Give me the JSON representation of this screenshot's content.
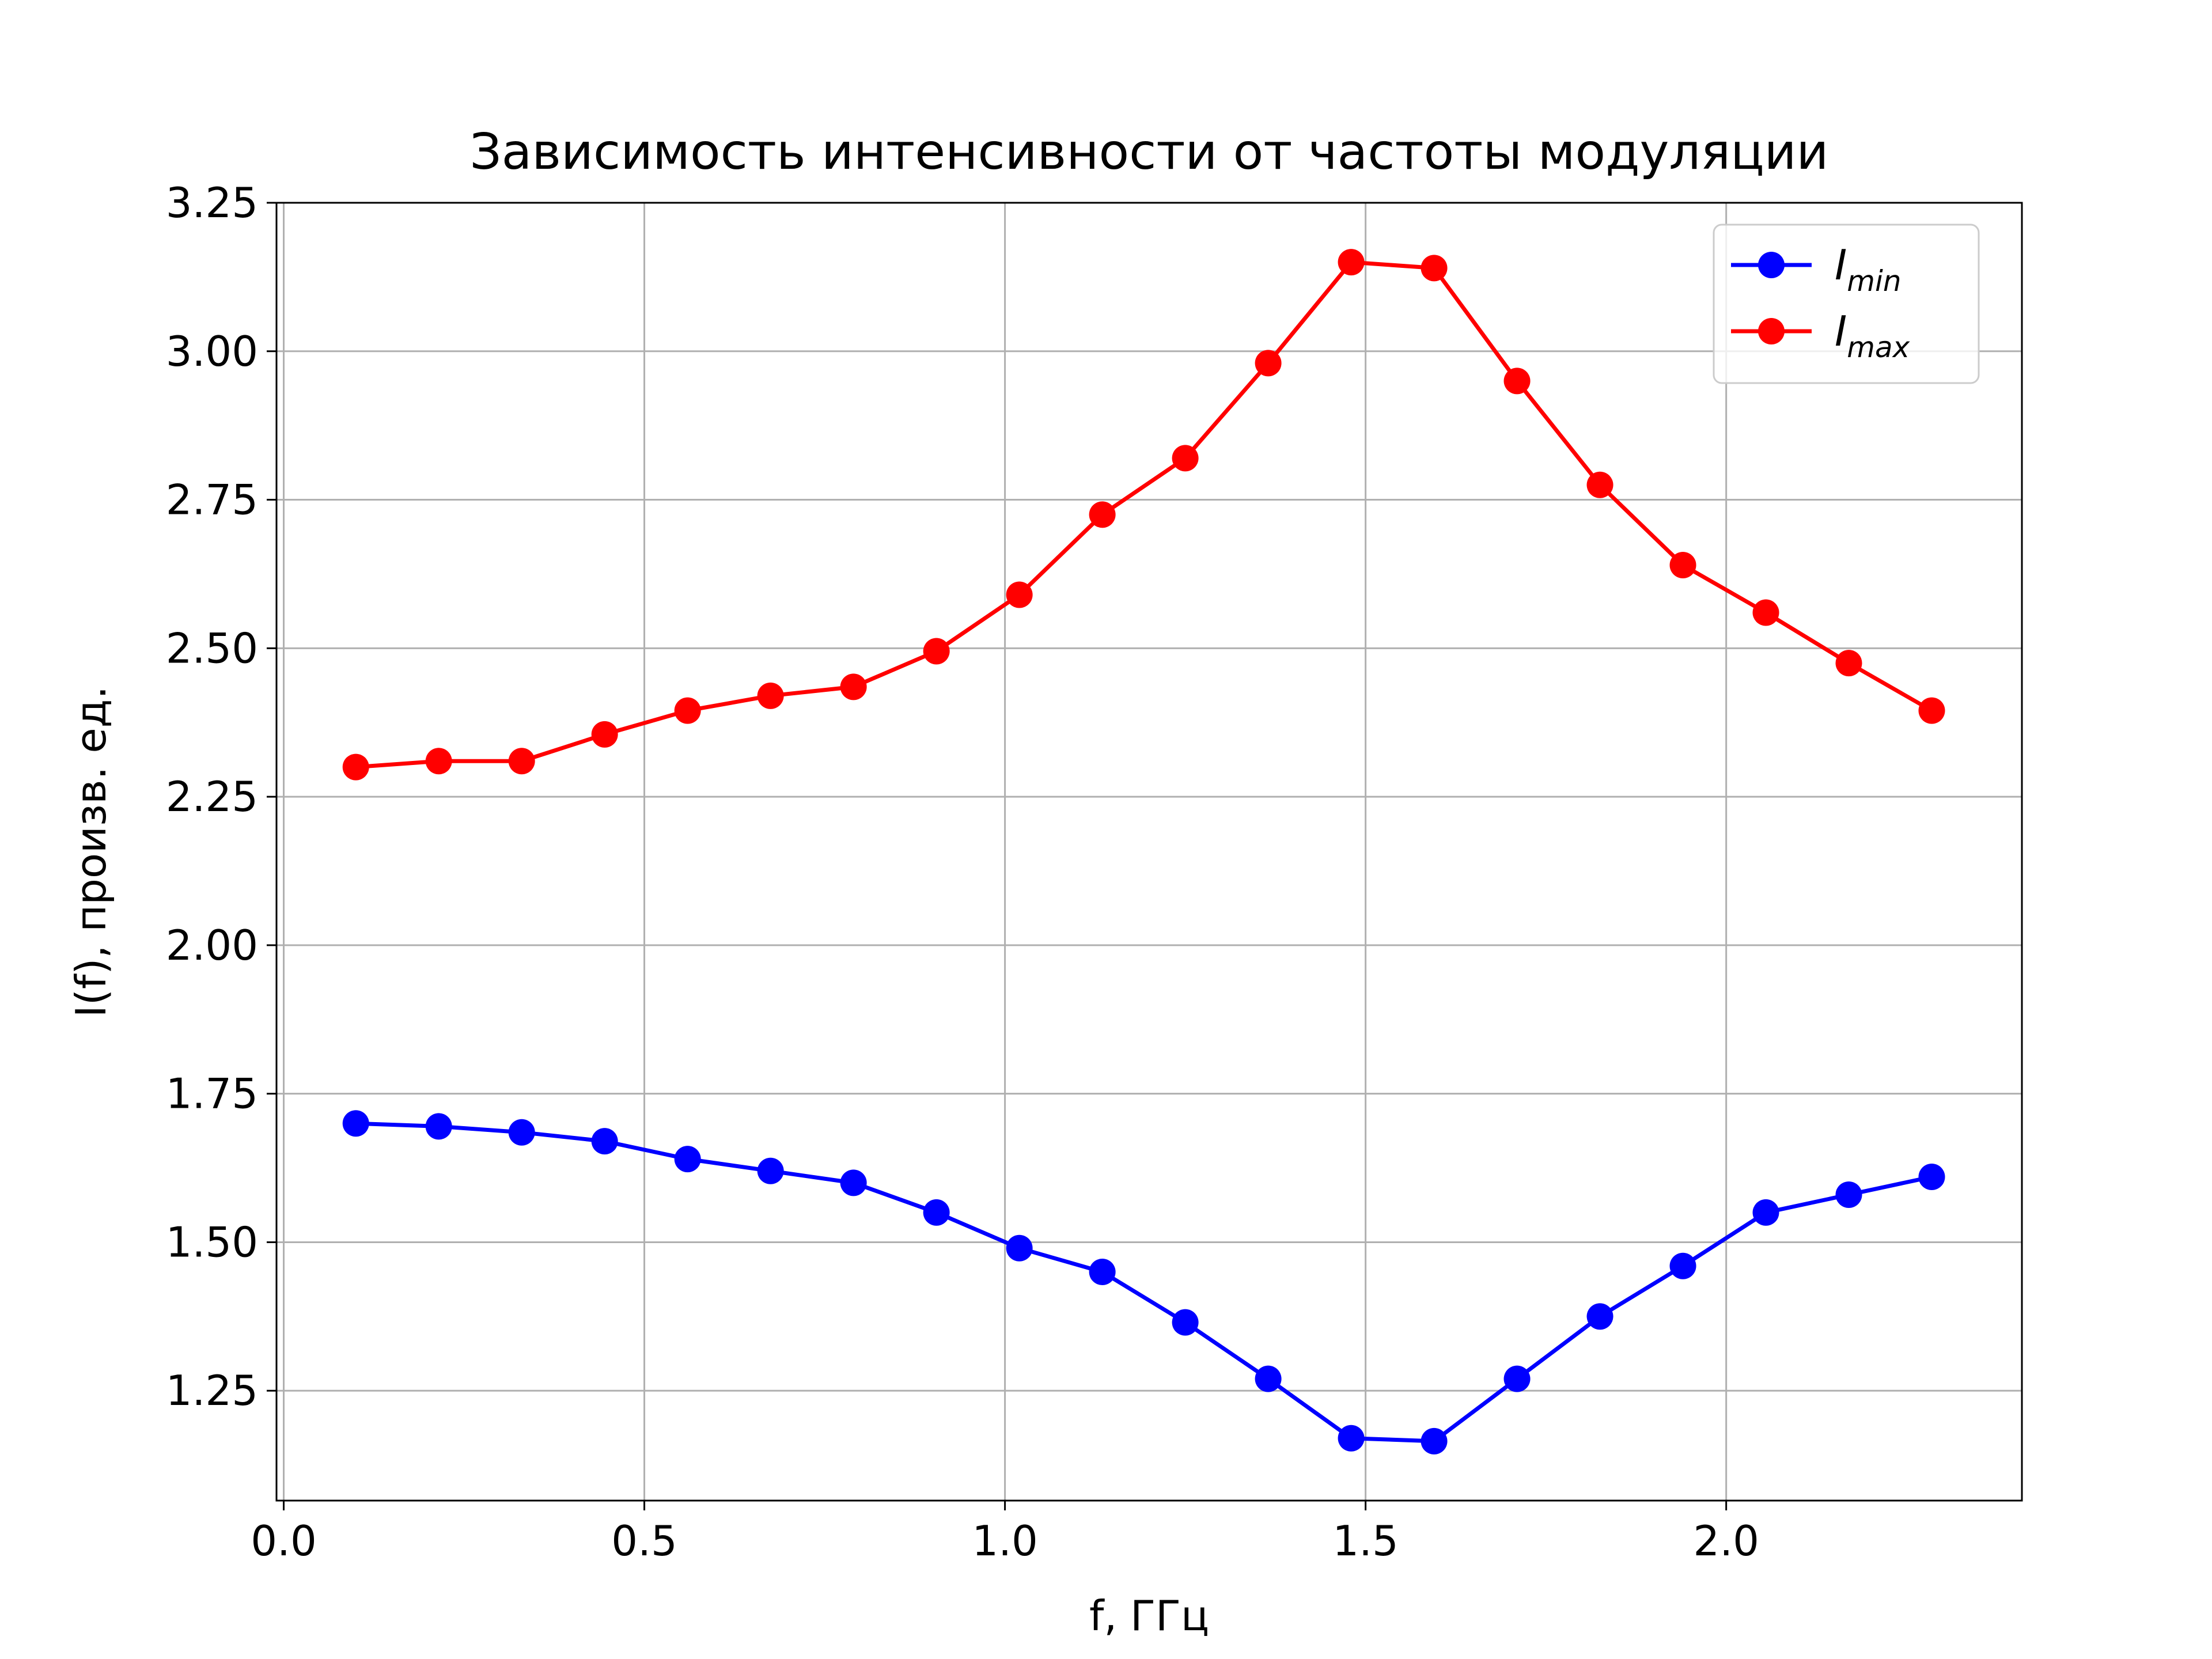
{
  "chart_data": {
    "type": "line",
    "title": "Зависимость интенсивности от частоты модуляции",
    "xlabel": "f, ГГц",
    "ylabel": "I(f), произв. ед.",
    "xlim": [
      -0.01,
      2.41
    ],
    "ylim": [
      1.065,
      3.25
    ],
    "xticks": [
      0.0,
      0.5,
      1.0,
      1.5,
      2.0
    ],
    "xtick_labels": [
      "0.0",
      "0.5",
      "1.0",
      "1.5",
      "2.0"
    ],
    "yticks": [
      1.25,
      1.5,
      1.75,
      2.0,
      2.25,
      2.5,
      2.75,
      3.0,
      3.25
    ],
    "ytick_labels": [
      "1.25",
      "1.50",
      "1.75",
      "2.00",
      "2.25",
      "2.50",
      "2.75",
      "3.00",
      "3.25"
    ],
    "grid": true,
    "legend_position": "top-right",
    "x": [
      0.1,
      0.215,
      0.33,
      0.445,
      0.56,
      0.675,
      0.79,
      0.905,
      1.02,
      1.135,
      1.25,
      1.365,
      1.48,
      1.595,
      1.71,
      1.825,
      1.94,
      2.055,
      2.17,
      2.285
    ],
    "series": [
      {
        "name": "I_min",
        "legend_main": "I",
        "legend_sub": "min",
        "color": "#0000ff",
        "values": [
          1.7,
          1.695,
          1.685,
          1.67,
          1.64,
          1.62,
          1.6,
          1.55,
          1.49,
          1.45,
          1.365,
          1.27,
          1.17,
          1.165,
          1.27,
          1.375,
          1.46,
          1.55,
          1.58,
          1.61
        ]
      },
      {
        "name": "I_max",
        "legend_main": "I",
        "legend_sub": "max",
        "color": "#ff0000",
        "values": [
          2.3,
          2.31,
          2.31,
          2.355,
          2.395,
          2.42,
          2.435,
          2.495,
          2.59,
          2.725,
          2.82,
          2.98,
          3.15,
          3.14,
          2.95,
          2.775,
          2.64,
          2.56,
          2.475,
          2.395
        ]
      }
    ]
  }
}
